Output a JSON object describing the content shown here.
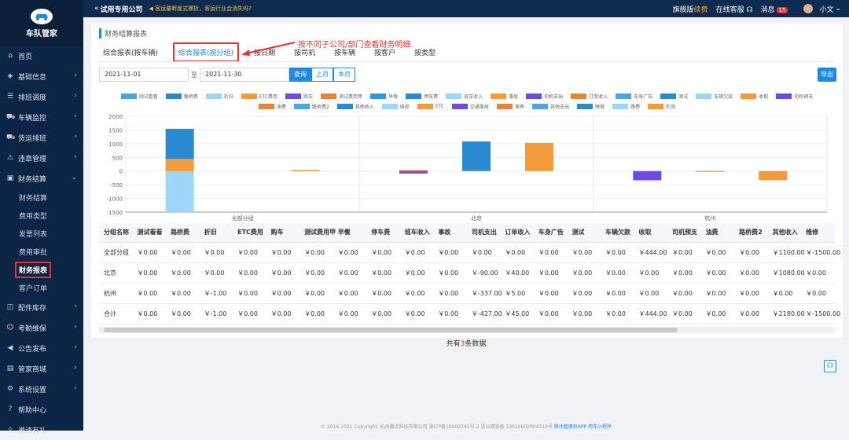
{
  "app": {
    "logo_text": "车队管家"
  },
  "topbar": {
    "back_icon": "«",
    "company": "试用专用公司",
    "notice": "客运量断崖式骤折，客运行业会消失吗?",
    "edition": "旗舰版",
    "renew": "续费",
    "service": "在线客服",
    "messages_label": "消息",
    "messages_count": "15",
    "user": "小文"
  },
  "sidebar": {
    "items": [
      {
        "label": "首页",
        "icon": "home-icon"
      },
      {
        "label": "基础信息",
        "icon": "layers-icon"
      },
      {
        "label": "排班调度",
        "icon": "list-icon"
      },
      {
        "label": "车辆监控",
        "icon": "car-icon"
      },
      {
        "label": "货运排班",
        "icon": "truck-icon"
      },
      {
        "label": "违章管理",
        "icon": "warning-icon"
      },
      {
        "label": "财务结算",
        "icon": "finance-icon"
      }
    ],
    "subitems": [
      "财务结算",
      "费用类型",
      "发票列表",
      "费用审批",
      "财务报表",
      "客户订单"
    ],
    "items2": [
      {
        "label": "配件库存",
        "icon": "box-icon"
      },
      {
        "label": "考勤维保",
        "icon": "person-icon"
      },
      {
        "label": "公告发布",
        "icon": "megaphone-icon"
      },
      {
        "label": "管家商城",
        "icon": "cart-icon"
      },
      {
        "label": "系统设置",
        "icon": "gear-icon"
      },
      {
        "label": "帮助中心",
        "icon": "help-icon"
      },
      {
        "label": "邀请有礼",
        "icon": "gift-icon"
      }
    ]
  },
  "page": {
    "breadcrumb": "财务结算报表",
    "annotation": "按不同子公司/部门查看财务明细",
    "tabs": [
      "综合报表(按车辆)",
      "综合报表(按分组)",
      "按日期",
      "按司机",
      "按车辆",
      "按客户",
      "按类型"
    ],
    "date_start": "2021-11-01",
    "date_sep": "至",
    "date_end": "2021-11-30",
    "btn_query": "查询",
    "btn_last_month": "上月",
    "btn_this_month": "本月",
    "btn_export": "导出",
    "count_prefix": "共有",
    "count_value": "3",
    "count_suffix": "条数据",
    "copyright": "© 2016-2021 Copyright. 杭州路点科技有限公司 浙ICP备16002785号-2 浙公网安备 33010602004310号",
    "copyright_links": "移动管理员APP 用车小程序"
  },
  "colors": {
    "accent": "#1e88e5",
    "sidebar": "#0d2545",
    "highlight": "#e53333"
  },
  "chart_data": {
    "type": "bar",
    "categories": [
      "全部分组",
      "北京",
      "杭州"
    ],
    "ylim": [
      -1500,
      2000
    ],
    "yticks": [
      2000,
      1500,
      1000,
      500,
      0,
      -500,
      -1000,
      -1500
    ],
    "legend": [
      {
        "name": "测试看看",
        "color": "#4fa3e8"
      },
      {
        "name": "路桥费",
        "color": "#2a8ad1"
      },
      {
        "name": "折旧",
        "color": "#9ed6f7"
      },
      {
        "name": "ETC费用",
        "color": "#f39a3d"
      },
      {
        "name": "购车",
        "color": "#6b4ae6"
      },
      {
        "name": "测试费用甲",
        "color": "#e8833a"
      },
      {
        "name": "早餐",
        "color": "#2d97e0"
      },
      {
        "name": "停车费",
        "color": "#2a8ad1"
      },
      {
        "name": "班车收入",
        "color": "#9ed6f7"
      },
      {
        "name": "事故",
        "color": "#f39a3d"
      },
      {
        "name": "司机支出",
        "color": "#6b4ae6"
      },
      {
        "name": "订单收入",
        "color": "#e8833a"
      },
      {
        "name": "车身广告",
        "color": "#4fa3e8"
      },
      {
        "name": "测试",
        "color": "#2a8ad1"
      },
      {
        "name": "车辆欠款",
        "color": "#9ed6f7"
      },
      {
        "name": "收取",
        "color": "#f39a3d"
      },
      {
        "name": "司机预支",
        "color": "#6b4ae6"
      },
      {
        "name": "油费",
        "color": "#e8833a"
      },
      {
        "name": "路桥费2",
        "color": "#4fa3e8"
      },
      {
        "name": "其他收入",
        "color": "#2a8ad1"
      },
      {
        "name": "维修",
        "color": "#9ed6f7"
      },
      {
        "name": "ETC",
        "color": "#f39a3d"
      },
      {
        "name": "交通事故",
        "color": "#6b4ae6"
      },
      {
        "name": "保养",
        "color": "#e8833a"
      },
      {
        "name": "其他支出",
        "color": "#4fa3e8"
      },
      {
        "name": "晚餐",
        "color": "#2a8ad1"
      },
      {
        "name": "路费",
        "color": "#9ed6f7"
      },
      {
        "name": "利润",
        "color": "#f39a3d"
      }
    ],
    "bars": [
      {
        "category": "全部分组",
        "slot": 0,
        "segments": [
          {
            "series": "维修",
            "value": -1500
          },
          {
            "series": "ETC",
            "value": 444
          },
          {
            "series": "其他收入",
            "value": 1100
          }
        ]
      },
      {
        "category": "全部分组",
        "slot": 2,
        "segments": [
          {
            "series": "利润",
            "value": 44
          }
        ]
      },
      {
        "category": "北京",
        "slot": 0,
        "segments": [
          {
            "series": "司机支出",
            "value": -90
          },
          {
            "series": "订单收入",
            "value": 40
          }
        ]
      },
      {
        "category": "北京",
        "slot": 1,
        "segments": [
          {
            "series": "其他收入",
            "value": 1080
          }
        ]
      },
      {
        "category": "北京",
        "slot": 2,
        "segments": [
          {
            "series": "利润",
            "value": 1030
          }
        ]
      },
      {
        "category": "杭州",
        "slot": 0,
        "segments": [
          {
            "series": "司机支出",
            "value": -337
          }
        ]
      },
      {
        "category": "杭州",
        "slot": 1,
        "segments": [
          {
            "series": "折旧",
            "value": -1
          },
          {
            "series": "订单收入",
            "value": 5
          }
        ]
      },
      {
        "category": "杭州",
        "slot": 2,
        "segments": [
          {
            "series": "利润",
            "value": -333
          }
        ]
      }
    ]
  },
  "table": {
    "headers": [
      "分组名称",
      "测试看看",
      "路桥费",
      "折旧",
      "ETC费用",
      "购车",
      "测试费用甲",
      "早餐",
      "停车费",
      "班车收入",
      "事故",
      "司机支出",
      "订单收入",
      "车身广告",
      "测试",
      "车辆欠款",
      "收取",
      "司机预支",
      "油费",
      "路桥费2",
      "其他收入",
      "维修"
    ],
    "rows": [
      [
        "全部分组",
        "￥0.00",
        "￥0.00",
        "￥0.00",
        "￥0.00",
        "￥0.00",
        "￥0.00",
        "￥0.00",
        "￥0.00",
        "￥0.00",
        "￥0.00",
        "￥0.00",
        "￥0.00",
        "￥0.00",
        "￥0.00",
        "￥0.00",
        "￥444.00",
        "￥0.00",
        "￥0.00",
        "￥0.00",
        "￥1100.00",
        "￥-1500.00"
      ],
      [
        "北京",
        "￥0.00",
        "￥0.00",
        "￥0.00",
        "￥0.00",
        "￥0.00",
        "￥0.00",
        "￥0.00",
        "￥0.00",
        "￥0.00",
        "￥0.00",
        "￥-90.00",
        "￥40.00",
        "￥0.00",
        "￥0.00",
        "￥0.00",
        "￥0.00",
        "￥0.00",
        "￥0.00",
        "￥0.00",
        "￥1080.00",
        "￥0.00"
      ],
      [
        "杭州",
        "￥0.00",
        "￥0.00",
        "￥-1.00",
        "￥0.00",
        "￥0.00",
        "￥0.00",
        "￥0.00",
        "￥0.00",
        "￥0.00",
        "￥0.00",
        "￥-337.00",
        "￥5.00",
        "￥0.00",
        "￥0.00",
        "￥0.00",
        "￥0.00",
        "￥0.00",
        "￥0.00",
        "￥0.00",
        "￥0.00",
        "￥0.00"
      ],
      [
        "合计",
        "￥0.00",
        "￥0.00",
        "￥-1.00",
        "￥0.00",
        "￥0.00",
        "￥0.00",
        "￥0.00",
        "￥0.00",
        "￥0.00",
        "￥0.00",
        "￥-427.00",
        "￥45.00",
        "￥0.00",
        "￥0.00",
        "￥0.00",
        "￥444.00",
        "￥0.00",
        "￥0.00",
        "￥0.00",
        "￥2180.00",
        "￥-1500.00"
      ]
    ]
  }
}
